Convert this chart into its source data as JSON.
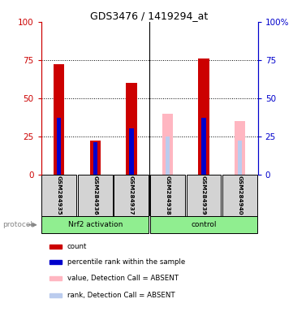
{
  "title": "GDS3476 / 1419294_at",
  "samples": [
    "GSM284935",
    "GSM284936",
    "GSM284937",
    "GSM284938",
    "GSM284939",
    "GSM284940"
  ],
  "groups": [
    "Nrf2 activation",
    "Nrf2 activation",
    "Nrf2 activation",
    "control",
    "control",
    "control"
  ],
  "red_values": [
    72,
    22,
    60,
    null,
    76,
    null
  ],
  "blue_values": [
    37,
    21,
    30,
    null,
    37,
    null
  ],
  "pink_values": [
    null,
    null,
    null,
    40,
    null,
    35
  ],
  "lightblue_values": [
    null,
    null,
    null,
    25,
    null,
    22
  ],
  "red_color": "#CC0000",
  "blue_color": "#0000CC",
  "pink_color": "#FFB6C1",
  "lightblue_color": "#BBCCEE",
  "ylim": [
    0,
    100
  ],
  "yticks": [
    0,
    25,
    50,
    75,
    100
  ],
  "left_axis_color": "#CC0000",
  "right_axis_color": "#0000CC",
  "legend_items": [
    {
      "label": "count",
      "color": "#CC0000"
    },
    {
      "label": "percentile rank within the sample",
      "color": "#0000CC"
    },
    {
      "label": "value, Detection Call = ABSENT",
      "color": "#FFB6C1"
    },
    {
      "label": "rank, Detection Call = ABSENT",
      "color": "#BBCCEE"
    }
  ],
  "protocol_label": "protocol",
  "sample_bg_color": "#D3D3D3",
  "group_bg_color": "#90EE90",
  "plot_bg_color": "#FFFFFF",
  "bar_width": 0.3,
  "blue_bar_width": 0.12
}
